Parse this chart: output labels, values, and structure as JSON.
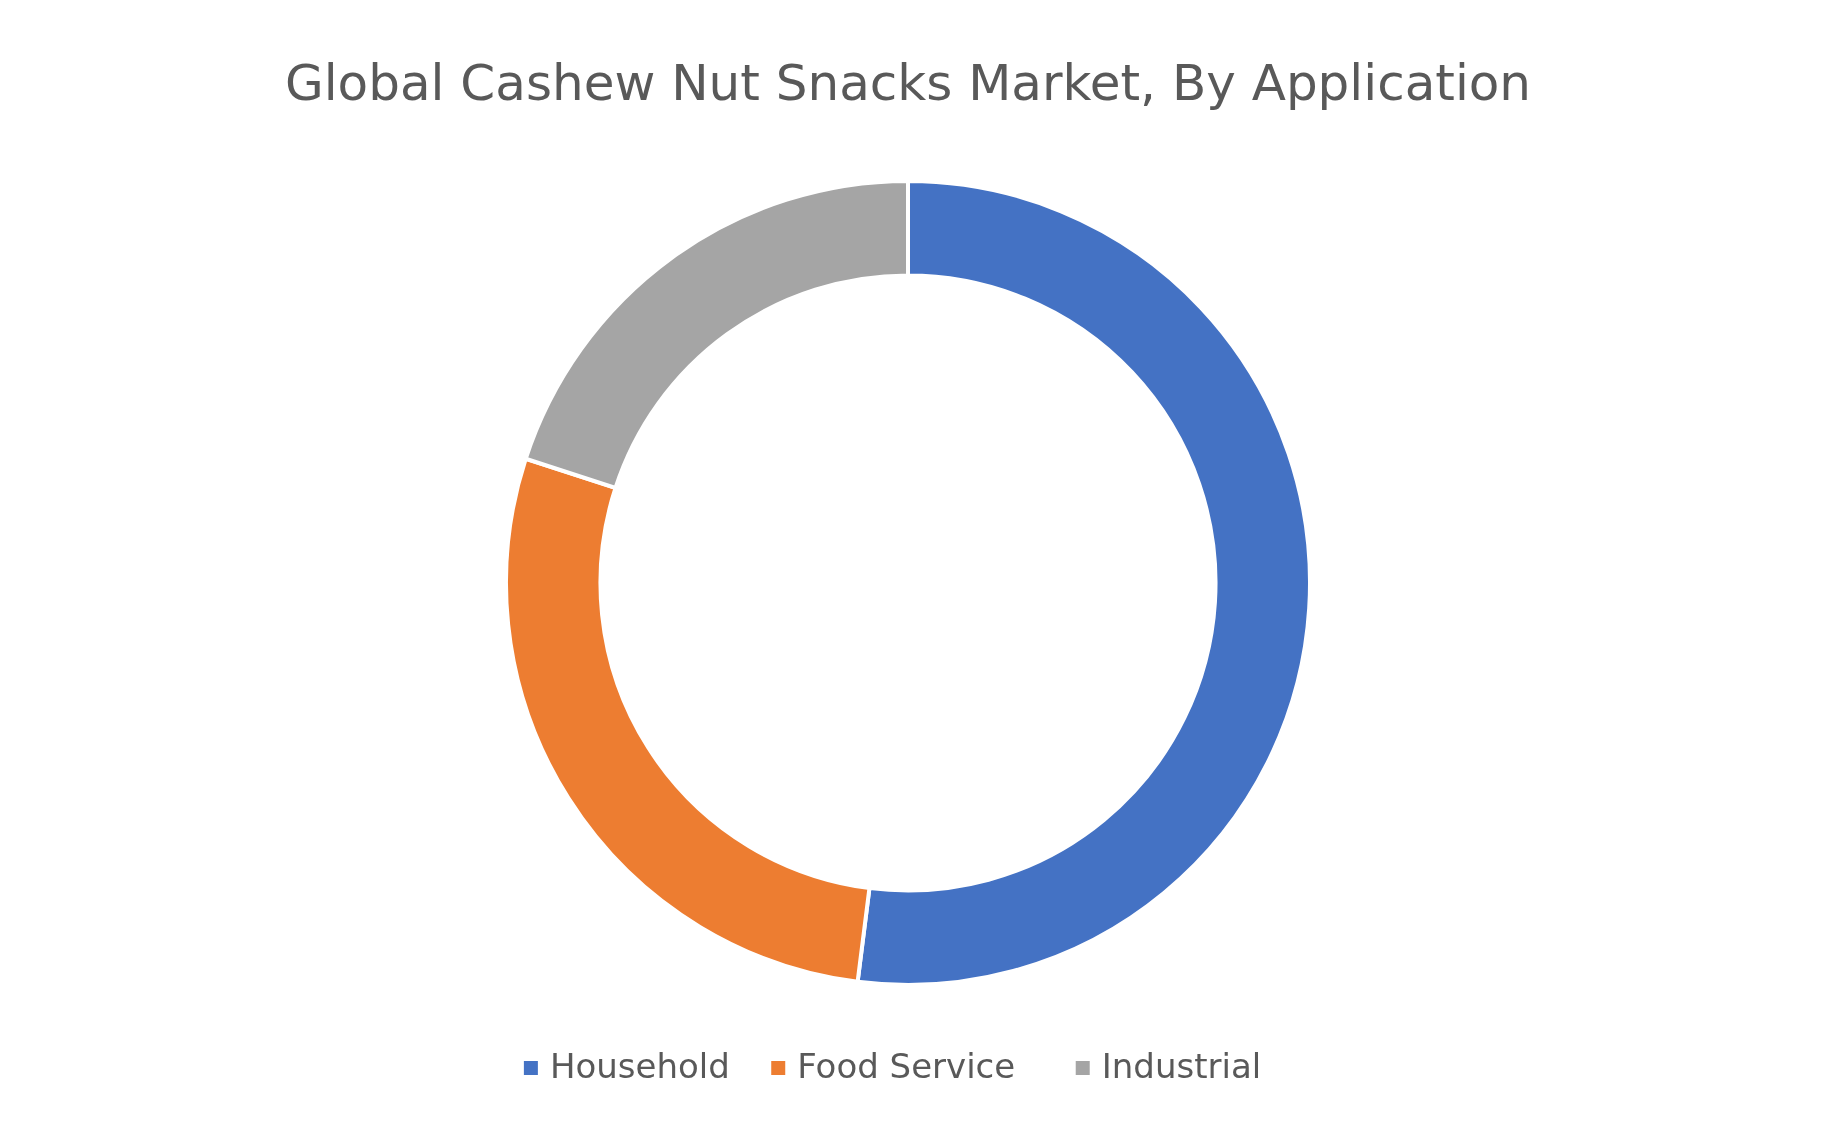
{
  "chart_data": {
    "type": "donut",
    "title": "Global Cashew Nut Snacks Market, By Application",
    "categories": [
      "Household",
      "Food Service",
      "Industrial"
    ],
    "values": [
      52,
      28,
      20
    ],
    "colors": [
      "#4472c4",
      "#ed7d31",
      "#a5a5a5"
    ],
    "legend": "bottom"
  }
}
